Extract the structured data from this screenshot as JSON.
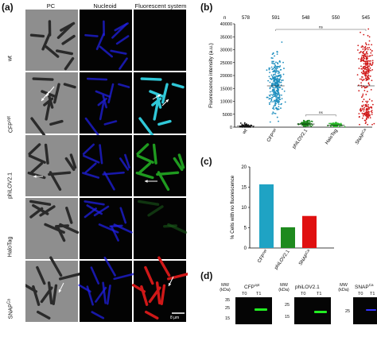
{
  "panel_a": {
    "letter": "(a)",
    "columns": [
      "PC",
      "Nucleoid",
      "Fluorescent system"
    ],
    "rows": [
      {
        "label": "wt",
        "sup": ""
      },
      {
        "label": "CFP",
        "sup": "opt"
      },
      {
        "label": "phiLOV2.1",
        "sup": ""
      },
      {
        "label": "HaloTag",
        "sup": ""
      },
      {
        "label": "SNAP",
        "sup": "Ca"
      }
    ],
    "scalebar_label": "8 μm",
    "colors": {
      "nucleoid": "#2020e0",
      "cfp": "#30c8d8",
      "philov": "#1f9a1f",
      "halotag": "#1b5e1b",
      "snap": "#d01818"
    }
  },
  "panel_b": {
    "letter": "(b)",
    "n_label": "n",
    "ns_label": "ns",
    "chart_data": {
      "type": "scatter",
      "categories": [
        "wt",
        "CFPopt",
        "phiLOV2.1",
        "HaloTag",
        "SNAPCa"
      ],
      "category_display": [
        {
          "base": "wt",
          "sup": ""
        },
        {
          "base": "CFP",
          "sup": "opt"
        },
        {
          "base": "phiLOV2.1",
          "sup": ""
        },
        {
          "base": "HaloTag",
          "sup": ""
        },
        {
          "base": "SNAP",
          "sup": "Ca"
        }
      ],
      "n": [
        "578",
        "591",
        "548",
        "550",
        "545"
      ],
      "colors": [
        "#1a1a1a",
        "#1f8fbf",
        "#1e8a1e",
        "#2cb82c",
        "#d01818"
      ],
      "medians": [
        500,
        16000,
        1200,
        800,
        16000
      ],
      "ylabel": "Fluorescence intensity (a.u.)",
      "ylim": [
        0,
        40000
      ],
      "yticks": [
        0,
        5000,
        10000,
        15000,
        20000,
        25000,
        30000,
        35000,
        40000
      ]
    }
  },
  "panel_c": {
    "letter": "(c)",
    "chart_data": {
      "type": "bar",
      "categories": [
        "CFPopt",
        "phiLOV2.1",
        "SNAPCa"
      ],
      "category_display": [
        {
          "base": "CFP",
          "sup": "opt"
        },
        {
          "base": "phiLOV2.1",
          "sup": ""
        },
        {
          "base": "SNAP",
          "sup": "Ca"
        }
      ],
      "values": [
        15.7,
        5.1,
        7.9
      ],
      "colors": [
        "#1fa3c4",
        "#1e8a1e",
        "#e01010"
      ],
      "ylabel": "% Cells with no fluorescence",
      "ylim": [
        0,
        20
      ],
      "yticks": [
        0,
        5,
        10,
        15,
        20
      ]
    }
  },
  "panel_d": {
    "letter": "(d)",
    "mw_label": "MW",
    "kda_label": "(kDa)",
    "blots": [
      {
        "title": "CFP",
        "sup": "opt",
        "markers": [
          "35",
          "25",
          "15"
        ],
        "lanes": [
          "T0",
          "T1"
        ],
        "band_color": "#22ee22"
      },
      {
        "title": "phiLOV2.1",
        "sup": "",
        "markers": [
          "25",
          "15"
        ],
        "lanes": [
          "T0",
          "T1"
        ],
        "band_color": "#22ee22"
      },
      {
        "title": "SNAP",
        "sup": "Ca",
        "markers": [
          "25"
        ],
        "lanes": [
          "T0",
          "T1"
        ],
        "band_color": "#3333ff"
      }
    ]
  }
}
